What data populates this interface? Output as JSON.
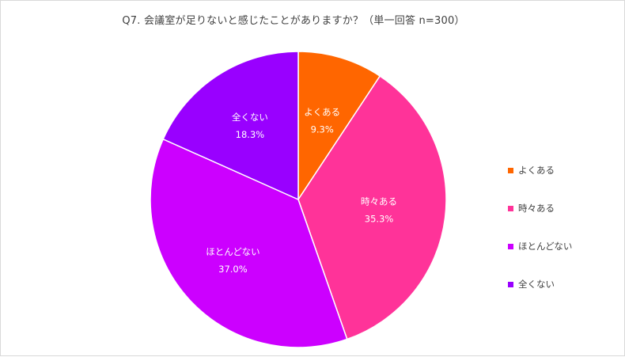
{
  "chart_data": {
    "type": "pie",
    "title": "Q7. 会議室が足りないと感じたことがありますか？（単一回答 n=300）",
    "slices": [
      {
        "label": "よくある",
        "value": 9.3,
        "value_label": "9.3%",
        "color": "#FF6600"
      },
      {
        "label": "時々ある",
        "value": 35.3,
        "value_label": "35.3%",
        "color": "#FF3399"
      },
      {
        "label": "ほとんどない",
        "value": 37.0,
        "value_label": "37.0%",
        "color": "#CC00FF"
      },
      {
        "label": "全くない",
        "value": 18.3,
        "value_label": "18.3%",
        "color": "#9900FF"
      }
    ],
    "legend_position": "right",
    "start_angle": "12 o'clock",
    "direction": "clockwise"
  }
}
